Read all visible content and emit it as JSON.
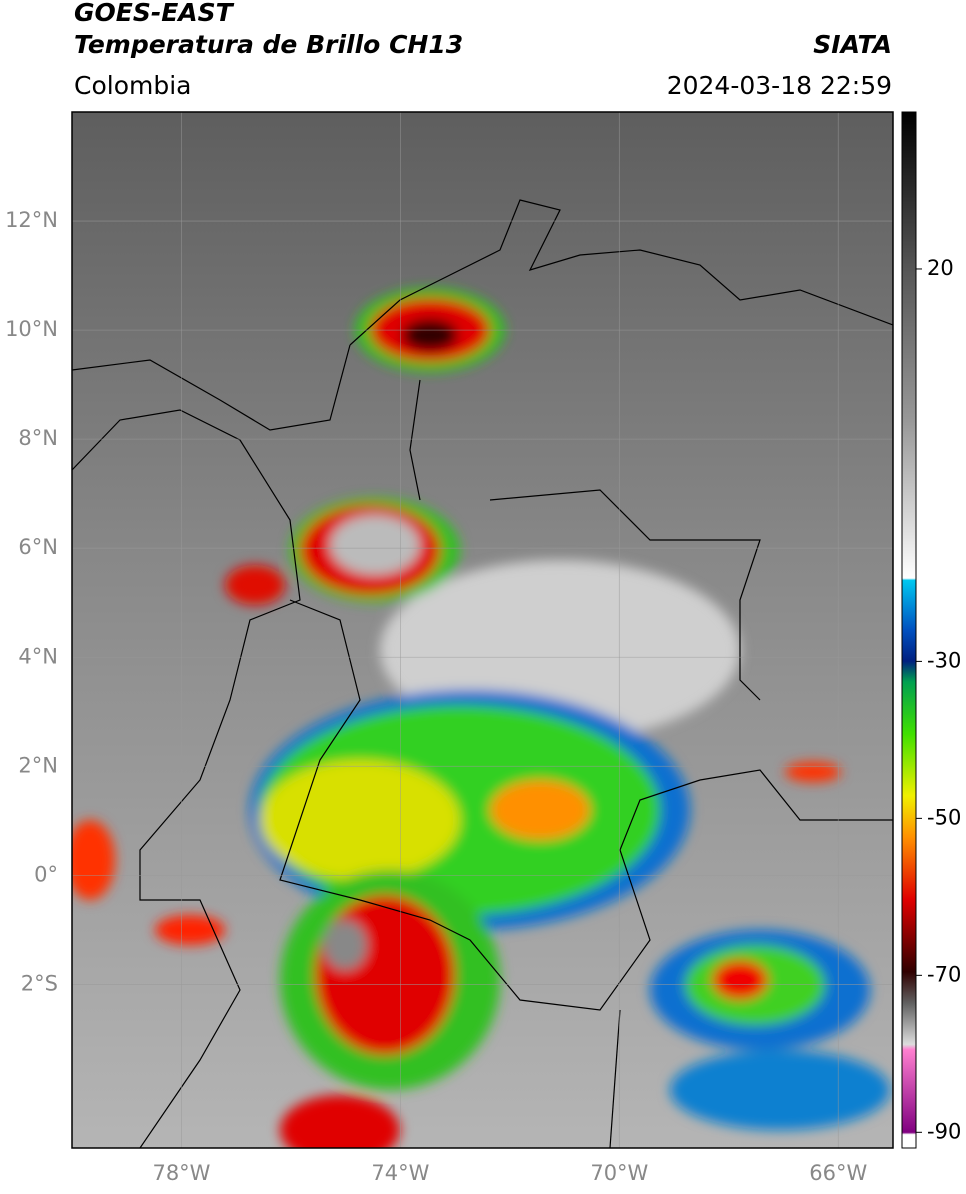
{
  "header": {
    "title": "GOES-EAST",
    "subtitle": "Temperatura de Brillo CH13",
    "source": "SIATA",
    "region": "Colombia",
    "datetime": "2024-03-18 22:59"
  },
  "map": {
    "xlim": [
      -80,
      -65
    ],
    "ylim": [
      -5,
      14
    ],
    "xticks": [
      {
        "value": -78,
        "label": "78°W"
      },
      {
        "value": -74,
        "label": "74°W"
      },
      {
        "value": -70,
        "label": "70°W"
      },
      {
        "value": -66,
        "label": "66°W"
      }
    ],
    "yticks": [
      {
        "value": 12,
        "label": "12°N"
      },
      {
        "value": 10,
        "label": "10°N"
      },
      {
        "value": 8,
        "label": "8°N"
      },
      {
        "value": 6,
        "label": "6°N"
      },
      {
        "value": 4,
        "label": "4°N"
      },
      {
        "value": 2,
        "label": "2°N"
      },
      {
        "value": 0,
        "label": "0°"
      },
      {
        "value": -2,
        "label": "2°S"
      }
    ],
    "grid": true
  },
  "colorbar": {
    "ylim": [
      -92,
      40
    ],
    "yticks": [
      20,
      -30,
      -50,
      -70,
      -90
    ]
  }
}
